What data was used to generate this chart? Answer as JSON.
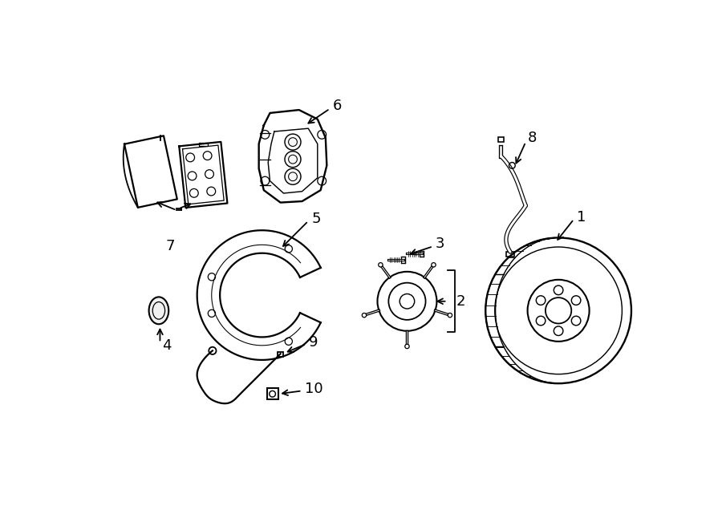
{
  "bg_color": "#ffffff",
  "line_color": "#000000",
  "lw": 1.3,
  "fig_width": 9.0,
  "fig_height": 6.61,
  "font_size": 13
}
